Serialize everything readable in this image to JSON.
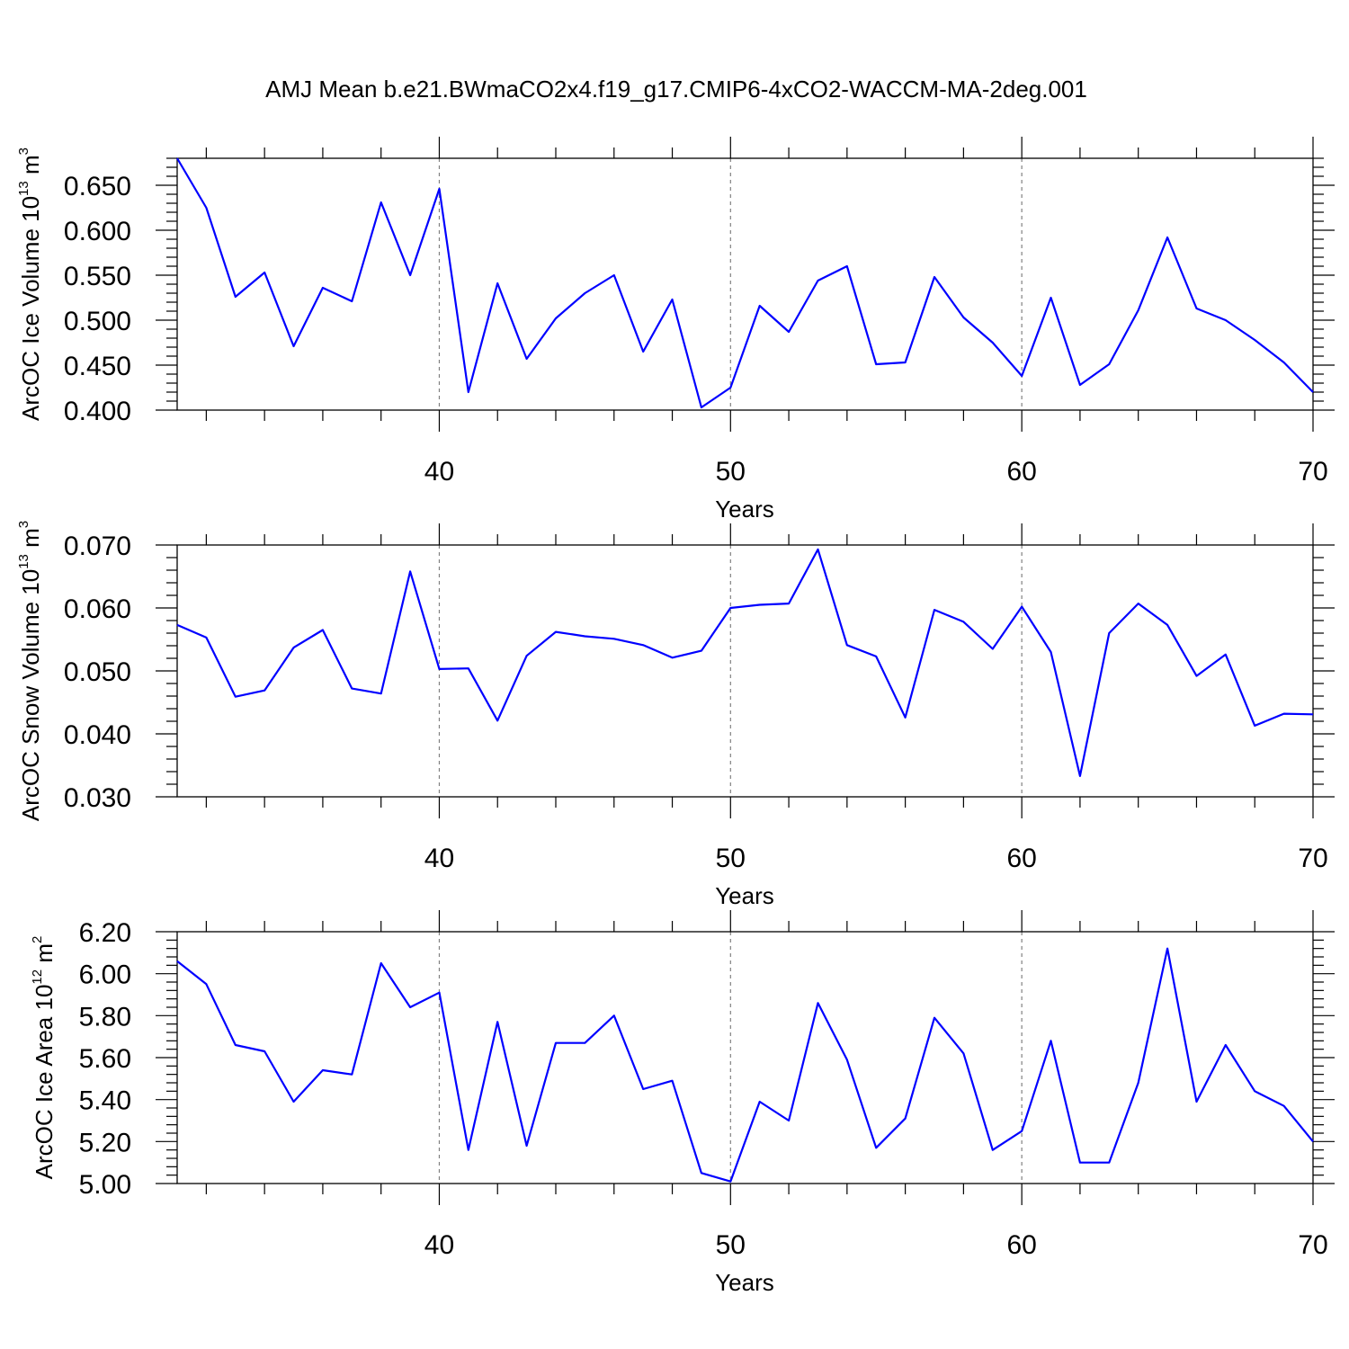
{
  "title": "AMJ Mean b.e21.BWmaCO2x4.f19_g17.CMIP6-4xCO2-WACCM-MA-2deg.001",
  "line_color": "#0000ff",
  "chart_data": [
    {
      "type": "line",
      "xlabel": "Years",
      "ylabel": {
        "text": "ArcOC Ice Volume 10",
        "exp": "13",
        "unit": " m",
        "unit_exp": "3"
      },
      "xlim": [
        31,
        70
      ],
      "ylim": [
        0.4,
        0.68
      ],
      "xticks": [
        40,
        50,
        60,
        70
      ],
      "xtick_labels": [
        "40",
        "50",
        "60",
        "70"
      ],
      "yticks": [
        0.4,
        0.45,
        0.5,
        0.55,
        0.6,
        0.65
      ],
      "ytick_labels": [
        "0.400",
        "0.450",
        "0.500",
        "0.550",
        "0.600",
        "0.650"
      ],
      "x": [
        31,
        32,
        33,
        34,
        35,
        36,
        37,
        38,
        39,
        40,
        41,
        42,
        43,
        44,
        45,
        46,
        47,
        48,
        49,
        50,
        51,
        52,
        53,
        54,
        55,
        56,
        57,
        58,
        59,
        60,
        61,
        62,
        63,
        64,
        65,
        66,
        67,
        68,
        69,
        70
      ],
      "series": [
        {
          "values": [
            0.68,
            0.625,
            0.526,
            0.553,
            0.471,
            0.536,
            0.521,
            0.631,
            0.55,
            0.646,
            0.42,
            0.541,
            0.457,
            0.502,
            0.53,
            0.55,
            0.465,
            0.523,
            0.403,
            0.425,
            0.516,
            0.487,
            0.544,
            0.56,
            0.451,
            0.453,
            0.548,
            0.503,
            0.475,
            0.438,
            0.525,
            0.428,
            0.451,
            0.511,
            0.592,
            0.513,
            0.5,
            0.478,
            0.453,
            0.42
          ]
        }
      ]
    },
    {
      "type": "line",
      "xlabel": "Years",
      "ylabel": {
        "text": "ArcOC Snow Volume 10",
        "exp": "13",
        "unit": " m",
        "unit_exp": "3"
      },
      "xlim": [
        31,
        70
      ],
      "ylim": [
        0.03,
        0.07
      ],
      "xticks": [
        40,
        50,
        60,
        70
      ],
      "xtick_labels": [
        "40",
        "50",
        "60",
        "70"
      ],
      "yticks": [
        0.03,
        0.04,
        0.05,
        0.06,
        0.07
      ],
      "ytick_labels": [
        "0.030",
        "0.040",
        "0.050",
        "0.060",
        "0.070"
      ],
      "x": [
        31,
        32,
        33,
        34,
        35,
        36,
        37,
        38,
        39,
        40,
        41,
        42,
        43,
        44,
        45,
        46,
        47,
        48,
        49,
        50,
        51,
        52,
        53,
        54,
        55,
        56,
        57,
        58,
        59,
        60,
        61,
        62,
        63,
        64,
        65,
        66,
        67,
        68,
        69,
        70
      ],
      "series": [
        {
          "values": [
            0.0573,
            0.0553,
            0.0459,
            0.0469,
            0.0537,
            0.0565,
            0.0472,
            0.0464,
            0.0658,
            0.0503,
            0.0504,
            0.0421,
            0.0524,
            0.0562,
            0.0555,
            0.0551,
            0.0541,
            0.0521,
            0.0532,
            0.06,
            0.0605,
            0.0607,
            0.0693,
            0.0541,
            0.0523,
            0.0426,
            0.0597,
            0.0578,
            0.0535,
            0.0602,
            0.053,
            0.0333,
            0.056,
            0.0607,
            0.0573,
            0.0492,
            0.0526,
            0.0413,
            0.0432,
            0.0431
          ]
        }
      ]
    },
    {
      "type": "line",
      "xlabel": "Years",
      "ylabel": {
        "text": "ArcOC Ice Area 10",
        "exp": "12",
        "unit": " m",
        "unit_exp": "2"
      },
      "xlim": [
        31,
        70
      ],
      "ylim": [
        5.0,
        6.2
      ],
      "xticks": [
        40,
        50,
        60,
        70
      ],
      "xtick_labels": [
        "40",
        "50",
        "60",
        "70"
      ],
      "yticks": [
        5.0,
        5.2,
        5.4,
        5.6,
        5.8,
        6.0,
        6.2
      ],
      "ytick_labels": [
        "5.00",
        "5.20",
        "5.40",
        "5.60",
        "5.80",
        "6.00",
        "6.20"
      ],
      "x": [
        31,
        32,
        33,
        34,
        35,
        36,
        37,
        38,
        39,
        40,
        41,
        42,
        43,
        44,
        45,
        46,
        47,
        48,
        49,
        50,
        51,
        52,
        53,
        54,
        55,
        56,
        57,
        58,
        59,
        60,
        61,
        62,
        63,
        64,
        65,
        66,
        67,
        68,
        69,
        70
      ],
      "series": [
        {
          "values": [
            6.06,
            5.95,
            5.66,
            5.63,
            5.39,
            5.54,
            5.52,
            6.05,
            5.84,
            5.91,
            5.16,
            5.77,
            5.18,
            5.67,
            5.67,
            5.8,
            5.45,
            5.49,
            5.05,
            5.01,
            5.39,
            5.3,
            5.86,
            5.59,
            5.17,
            5.31,
            5.79,
            5.62,
            5.16,
            5.25,
            5.68,
            5.1,
            5.1,
            5.48,
            6.12,
            5.39,
            5.66,
            5.44,
            5.37,
            5.2
          ]
        }
      ]
    }
  ]
}
